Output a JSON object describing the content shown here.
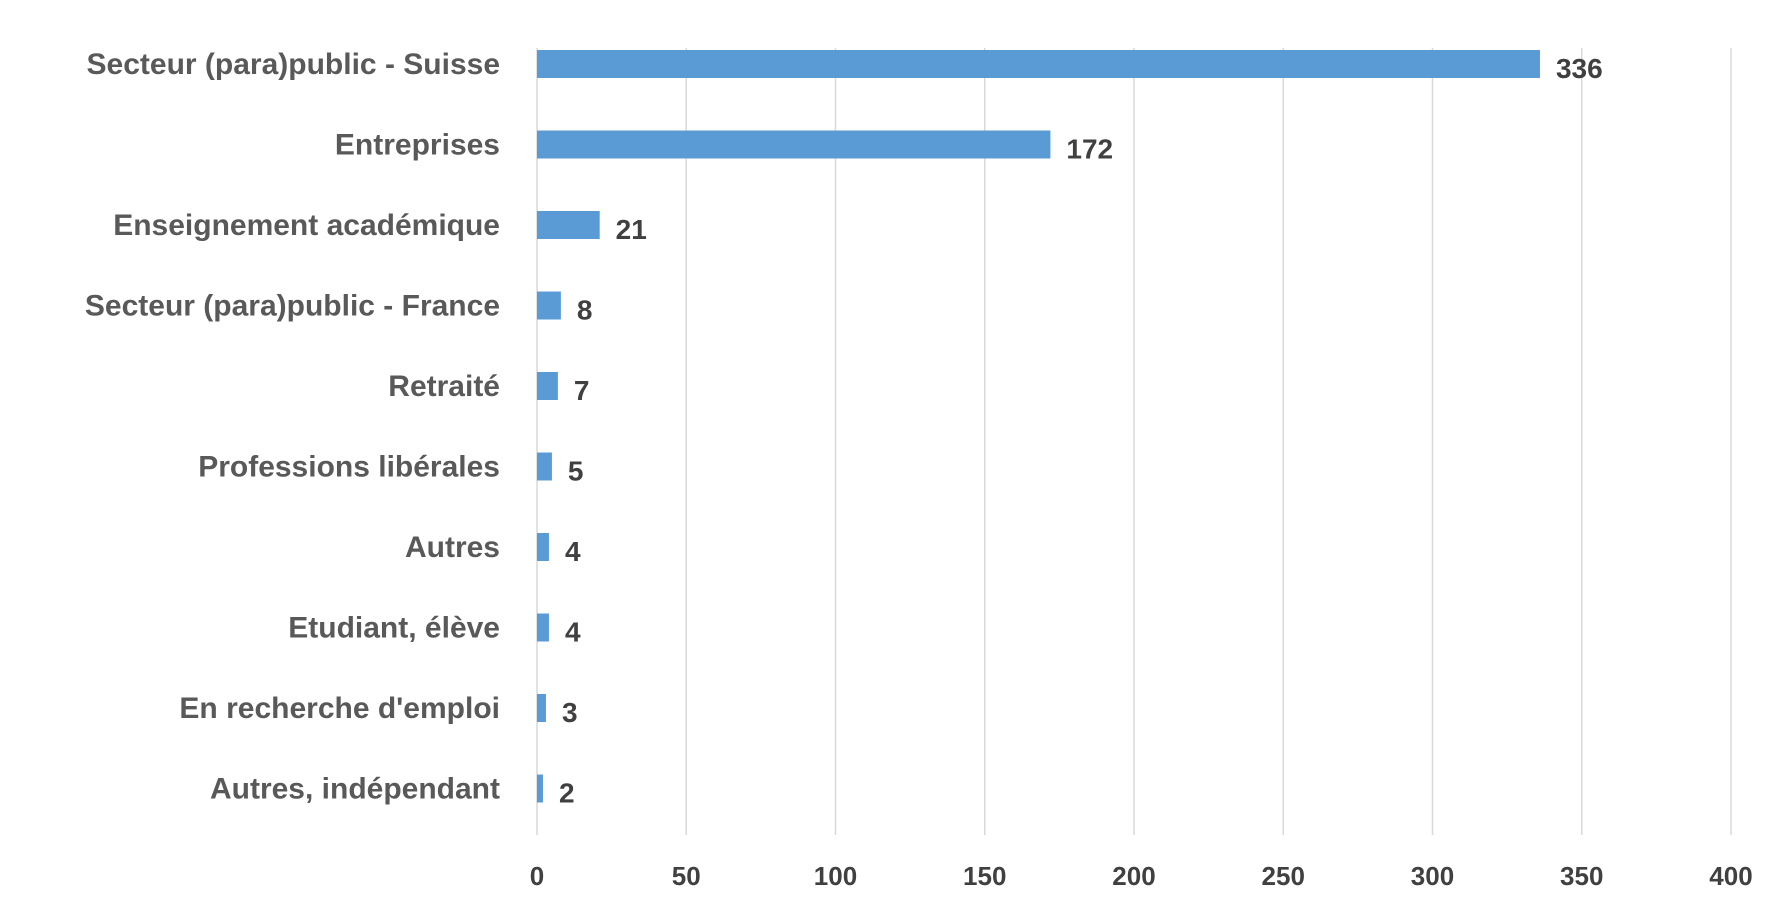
{
  "chart_data": {
    "type": "bar",
    "orientation": "horizontal",
    "title": "",
    "xlabel": "",
    "ylabel": "",
    "categories": [
      "Secteur (para)public - Suisse",
      "Entreprises",
      "Enseignement académique",
      "Secteur (para)public - France",
      "Retraité",
      "Professions libérales",
      "Autres",
      "Etudiant, élève",
      "En recherche d'emploi",
      "Autres, indépendant"
    ],
    "values": [
      336,
      172,
      21,
      8,
      7,
      5,
      4,
      4,
      3,
      2
    ],
    "xlim": [
      0,
      400
    ],
    "xticks": [
      "0",
      "50",
      "100",
      "150",
      "200",
      "250",
      "300",
      "350",
      "400"
    ],
    "grid": "vertical",
    "legend": "none",
    "bar_color": "#5b9bd5",
    "grid_color": "#d9d9d9"
  }
}
